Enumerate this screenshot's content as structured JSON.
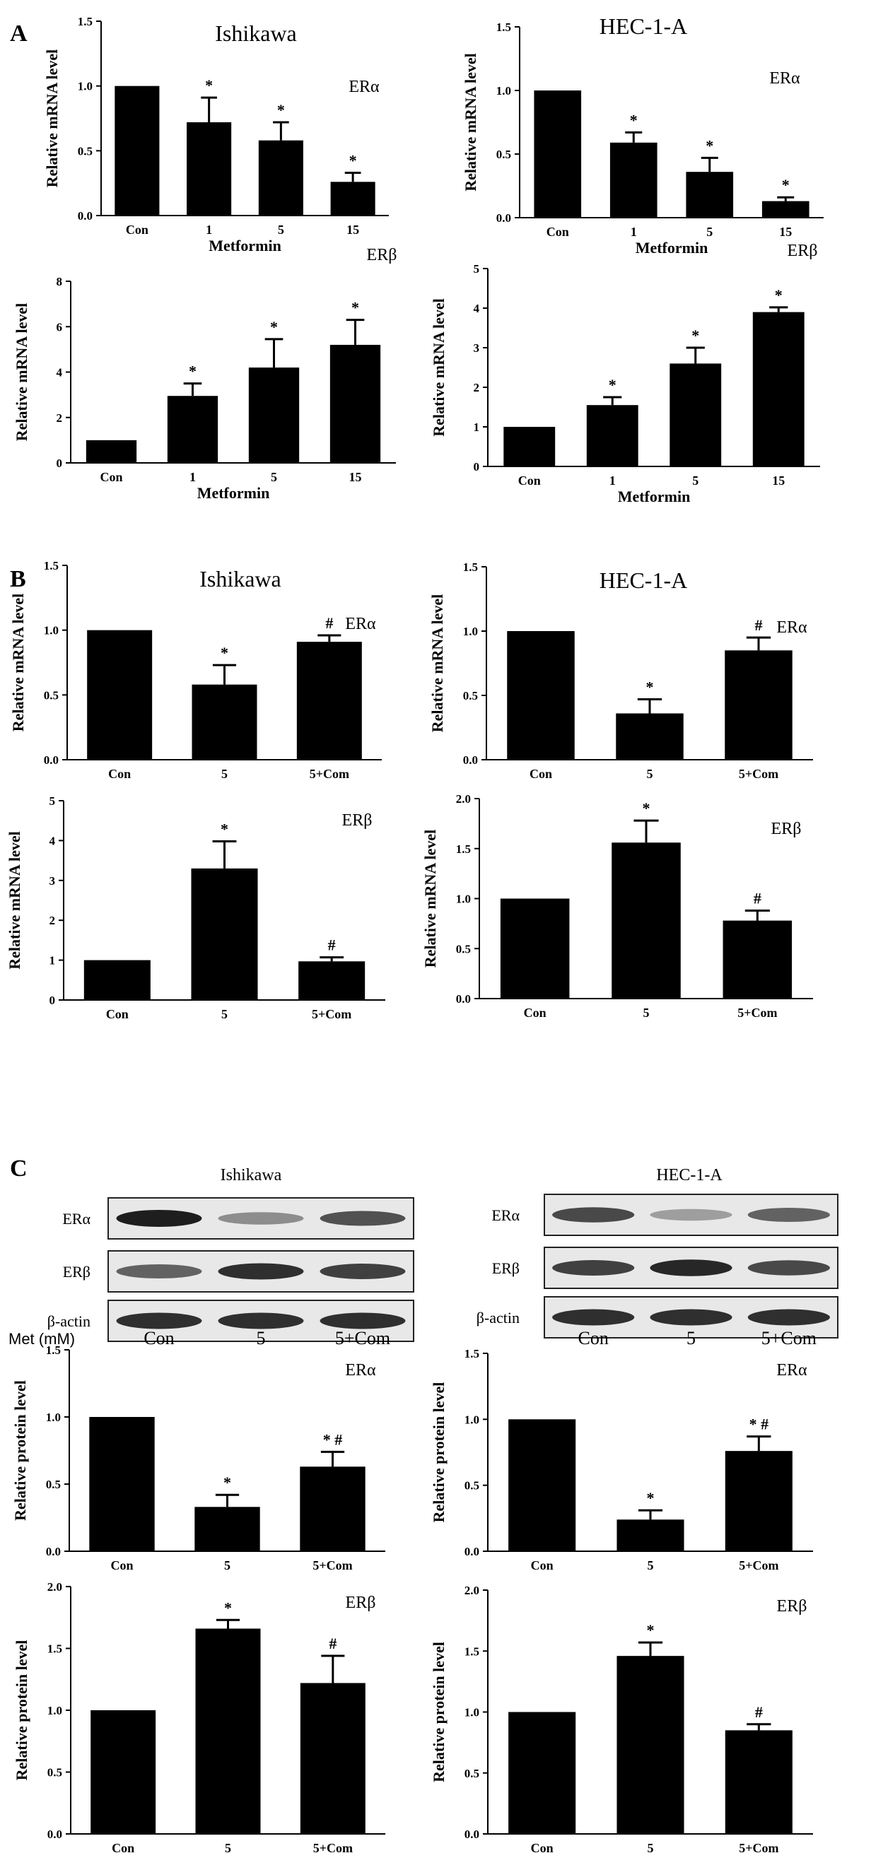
{
  "panel_labels": {
    "a": "A",
    "b": "B",
    "c": "C"
  },
  "chart_data": [
    {
      "type": "bar",
      "panel": "A",
      "title": "Ishikawa",
      "annotation": "ERα",
      "ylabel": "Relative mRNA level",
      "xlabel": "Metformin",
      "categories": [
        "Con",
        "1",
        "5",
        "15"
      ],
      "values": [
        1.0,
        0.72,
        0.58,
        0.26
      ],
      "errors": [
        0,
        0.19,
        0.14,
        0.07
      ],
      "markers": [
        "",
        "*",
        "*",
        "*"
      ],
      "ylim": [
        0,
        1.5
      ],
      "yticks": [
        "0.0",
        "0.5",
        "1.0",
        "1.5"
      ]
    },
    {
      "type": "bar",
      "panel": "A",
      "title": "HEC-1-A",
      "annotation": "ERα",
      "ylabel": "Relative mRNA level",
      "xlabel": "Metformin",
      "categories": [
        "Con",
        "1",
        "5",
        "15"
      ],
      "values": [
        1.0,
        0.59,
        0.36,
        0.13
      ],
      "errors": [
        0,
        0.08,
        0.11,
        0.03
      ],
      "markers": [
        "",
        "*",
        "*",
        "*"
      ],
      "ylim": [
        0,
        1.5
      ],
      "yticks": [
        "0.0",
        "0.5",
        "1.0",
        "1.5"
      ]
    },
    {
      "type": "bar",
      "panel": "A",
      "title": "",
      "annotation": "ERβ",
      "ylabel": "Relative mRNA level",
      "xlabel": "Metformin",
      "categories": [
        "Con",
        "1",
        "5",
        "15"
      ],
      "values": [
        1.0,
        2.95,
        4.2,
        5.2
      ],
      "errors": [
        0,
        0.55,
        1.25,
        1.1
      ],
      "markers": [
        "",
        "*",
        "*",
        "*"
      ],
      "ylim": [
        0,
        8
      ],
      "yticks": [
        "0",
        "2",
        "4",
        "6",
        "8"
      ]
    },
    {
      "type": "bar",
      "panel": "A",
      "title": "",
      "annotation": "ERβ",
      "ylabel": "Relative mRNA level",
      "xlabel": "Metformin",
      "categories": [
        "Con",
        "1",
        "5",
        "15"
      ],
      "values": [
        1.0,
        1.55,
        2.6,
        3.9
      ],
      "errors": [
        0,
        0.2,
        0.4,
        0.12
      ],
      "markers": [
        "",
        "*",
        "*",
        "*"
      ],
      "ylim": [
        0,
        5
      ],
      "yticks": [
        "0",
        "1",
        "2",
        "3",
        "4",
        "5"
      ]
    },
    {
      "type": "bar",
      "panel": "B",
      "title": "Ishikawa",
      "annotation": "ERα",
      "ylabel": "Relative mRNA level",
      "xlabel": "",
      "categories": [
        "Con",
        "5",
        "5+Com"
      ],
      "values": [
        1.0,
        0.58,
        0.91
      ],
      "errors": [
        0,
        0.15,
        0.05
      ],
      "markers": [
        "",
        "*",
        "#"
      ],
      "ylim": [
        0,
        1.5
      ],
      "yticks": [
        "0.0",
        "0.5",
        "1.0",
        "1.5"
      ]
    },
    {
      "type": "bar",
      "panel": "B",
      "title": "HEC-1-A",
      "annotation": "ERα",
      "ylabel": "Relative mRNA level",
      "xlabel": "",
      "categories": [
        "Con",
        "5",
        "5+Com"
      ],
      "values": [
        1.0,
        0.36,
        0.85
      ],
      "errors": [
        0,
        0.11,
        0.1
      ],
      "markers": [
        "",
        "*",
        "#"
      ],
      "ylim": [
        0,
        1.5
      ],
      "yticks": [
        "0.0",
        "0.5",
        "1.0",
        "1.5"
      ]
    },
    {
      "type": "bar",
      "panel": "B",
      "title": "",
      "annotation": "ERβ",
      "ylabel": "Relative mRNA level",
      "xlabel": "",
      "categories": [
        "Con",
        "5",
        "5+Com"
      ],
      "values": [
        1.0,
        3.3,
        0.97
      ],
      "errors": [
        0,
        0.68,
        0.1
      ],
      "markers": [
        "",
        "*",
        "#"
      ],
      "ylim": [
        0,
        5
      ],
      "yticks": [
        "0",
        "1",
        "2",
        "3",
        "4",
        "5"
      ]
    },
    {
      "type": "bar",
      "panel": "B",
      "title": "",
      "annotation": "ERβ",
      "ylabel": "Relative mRNA level",
      "xlabel": "",
      "categories": [
        "Con",
        "5",
        "5+Com"
      ],
      "values": [
        1.0,
        1.56,
        0.78
      ],
      "errors": [
        0,
        0.22,
        0.1
      ],
      "markers": [
        "",
        "*",
        "#"
      ],
      "ylim": [
        0,
        2.0
      ],
      "yticks": [
        "0.0",
        "0.5",
        "1.0",
        "1.5",
        "2.0"
      ]
    },
    {
      "type": "bar",
      "panel": "C",
      "title": "",
      "annotation": "ERα",
      "ylabel": "Relative protein level",
      "xlabel": "",
      "categories": [
        "Con",
        "5",
        "5+Com"
      ],
      "values": [
        1.0,
        0.33,
        0.63
      ],
      "errors": [
        0,
        0.09,
        0.11
      ],
      "markers": [
        "",
        "*",
        "* #"
      ],
      "ylim": [
        0,
        1.5
      ],
      "yticks": [
        "0.0",
        "0.5",
        "1.0",
        "1.5"
      ]
    },
    {
      "type": "bar",
      "panel": "C",
      "title": "",
      "annotation": "ERα",
      "ylabel": "Relative protein level",
      "xlabel": "",
      "categories": [
        "Con",
        "5",
        "5+Com"
      ],
      "values": [
        1.0,
        0.24,
        0.76
      ],
      "errors": [
        0,
        0.07,
        0.11
      ],
      "markers": [
        "",
        "*",
        "* #"
      ],
      "ylim": [
        0,
        1.5
      ],
      "yticks": [
        "0.0",
        "0.5",
        "1.0",
        "1.5"
      ]
    },
    {
      "type": "bar",
      "panel": "C",
      "title": "",
      "annotation": "ERβ",
      "ylabel": "Relative protein level",
      "xlabel": "",
      "categories": [
        "Con",
        "5",
        "5+Com"
      ],
      "values": [
        1.0,
        1.66,
        1.22
      ],
      "errors": [
        0,
        0.07,
        0.22
      ],
      "markers": [
        "",
        "*",
        "#"
      ],
      "ylim": [
        0,
        2.0
      ],
      "yticks": [
        "0.0",
        "0.5",
        "1.0",
        "1.5",
        "2.0"
      ]
    },
    {
      "type": "bar",
      "panel": "C",
      "title": "",
      "annotation": "ERβ",
      "ylabel": "Relative protein level",
      "xlabel": "",
      "categories": [
        "Con",
        "5",
        "5+Com"
      ],
      "values": [
        1.0,
        1.46,
        0.85
      ],
      "errors": [
        0,
        0.11,
        0.05
      ],
      "markers": [
        "",
        "*",
        "#"
      ],
      "ylim": [
        0,
        2.0
      ],
      "yticks": [
        "0.0",
        "0.5",
        "1.0",
        "1.5",
        "2.0"
      ]
    }
  ],
  "blots": [
    {
      "title": "Ishikawa",
      "rows": [
        {
          "label": "ERα",
          "intensity": [
            1.0,
            0.35,
            0.7
          ]
        },
        {
          "label": "ERβ",
          "intensity": [
            0.6,
            0.9,
            0.8
          ]
        },
        {
          "label": "β-actin",
          "intensity": [
            0.9,
            0.9,
            0.9
          ]
        }
      ],
      "lanes": [
        "Con",
        "5",
        "5+Com"
      ],
      "met_label": "Met (mM)"
    },
    {
      "title": "HEC-1-A",
      "rows": [
        {
          "label": "ERα",
          "intensity": [
            0.75,
            0.25,
            0.6
          ]
        },
        {
          "label": "ERβ",
          "intensity": [
            0.8,
            0.95,
            0.75
          ]
        },
        {
          "label": "β-actin",
          "intensity": [
            0.9,
            0.9,
            0.9
          ]
        }
      ],
      "lanes": [
        "Con",
        "5",
        "5+Com"
      ],
      "met_label": ""
    }
  ]
}
